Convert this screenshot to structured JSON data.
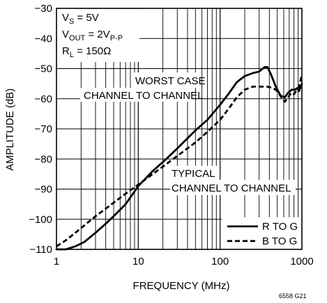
{
  "chart_data": {
    "type": "line",
    "xlabel": "FREQUENCY (MHz)",
    "ylabel": "AMPLITUDE (dB)",
    "xscale": "log",
    "xlim": [
      1,
      1000
    ],
    "ylim": [
      -110,
      -30
    ],
    "xticks": [
      1,
      10,
      100,
      1000
    ],
    "xtick_labels": [
      "1",
      "10",
      "100",
      "1000"
    ],
    "yticks": [
      -30,
      -40,
      -50,
      -60,
      -70,
      -80,
      -90,
      -100,
      -110
    ],
    "ytick_labels": [
      "−30",
      "−40",
      "−50",
      "−60",
      "−70",
      "−80",
      "−90",
      "−100",
      "−110"
    ],
    "grid": true,
    "legend_position": "bottom-right",
    "conditions": {
      "vs": {
        "main": "V",
        "sub": "S",
        "rest": " = 5V"
      },
      "vout": {
        "main": "V",
        "sub": "OUT",
        "rest": " = 2V",
        "sub2": "P-P"
      },
      "rl": {
        "main": "R",
        "sub": "L",
        "rest": " = 150Ω"
      }
    },
    "annotations": {
      "worst_case_line1": "WORST CASE",
      "worst_case_line2": "CHANNEL TO CHANNEL",
      "typical_line1": "TYPICAL",
      "typical_line2": "CHANNEL TO CHANNEL"
    },
    "series": [
      {
        "name": "R TO G",
        "style": "solid",
        "color": "#000000",
        "points": [
          [
            1,
            -110
          ],
          [
            1.3,
            -110
          ],
          [
            1.7,
            -109
          ],
          [
            2.2,
            -107.5
          ],
          [
            3,
            -104.5
          ],
          [
            4,
            -101.5
          ],
          [
            5,
            -99
          ],
          [
            7,
            -95
          ],
          [
            10,
            -89
          ],
          [
            15,
            -84
          ],
          [
            20,
            -81
          ],
          [
            30,
            -76.5
          ],
          [
            50,
            -70.5
          ],
          [
            70,
            -67
          ],
          [
            100,
            -62
          ],
          [
            130,
            -58
          ],
          [
            160,
            -54.5
          ],
          [
            200,
            -52.5
          ],
          [
            250,
            -51.5
          ],
          [
            300,
            -51
          ],
          [
            350,
            -49.5
          ],
          [
            380,
            -49.5
          ],
          [
            420,
            -52
          ],
          [
            480,
            -56
          ],
          [
            550,
            -59
          ],
          [
            620,
            -59.5
          ],
          [
            680,
            -58
          ],
          [
            750,
            -57
          ],
          [
            820,
            -57
          ],
          [
            870,
            -56.5
          ],
          [
            920,
            -57.5
          ],
          [
            1000,
            -55
          ]
        ]
      },
      {
        "name": "B TO G",
        "style": "dashed",
        "color": "#000000",
        "points": [
          [
            1,
            -109
          ],
          [
            1.3,
            -107
          ],
          [
            1.7,
            -104.5
          ],
          [
            2.2,
            -102
          ],
          [
            3,
            -99
          ],
          [
            4,
            -96.5
          ],
          [
            5,
            -94.5
          ],
          [
            7,
            -91.5
          ],
          [
            10,
            -88.5
          ],
          [
            15,
            -85
          ],
          [
            20,
            -82.5
          ],
          [
            30,
            -79
          ],
          [
            50,
            -74.5
          ],
          [
            70,
            -71
          ],
          [
            100,
            -67
          ],
          [
            130,
            -63
          ],
          [
            160,
            -59.5
          ],
          [
            200,
            -57
          ],
          [
            250,
            -56
          ],
          [
            300,
            -56
          ],
          [
            380,
            -56
          ],
          [
            450,
            -56.5
          ],
          [
            500,
            -57.5
          ],
          [
            560,
            -59.5
          ],
          [
            620,
            -61
          ],
          [
            680,
            -59.5
          ],
          [
            740,
            -58
          ],
          [
            800,
            -58.5
          ],
          [
            850,
            -57.5
          ],
          [
            920,
            -56
          ],
          [
            1000,
            -52
          ]
        ]
      }
    ],
    "figure_id": "6558 G21"
  }
}
